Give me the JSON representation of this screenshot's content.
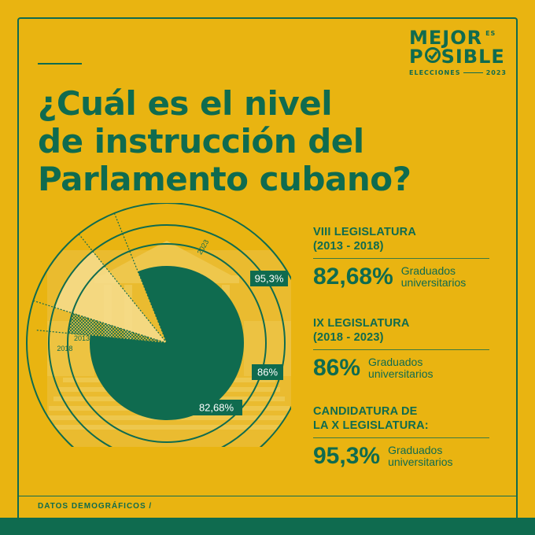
{
  "logo": {
    "line1": "MEJOR",
    "superscript": "ES",
    "line2_start": "P",
    "line2_end": "SIBLE",
    "line3_left": "ELECCIONES",
    "line3_right": "2023",
    "check_icon": "checkmark-icon"
  },
  "title": {
    "line1": "¿Cuál es el nivel",
    "line2": "de instrucción del",
    "line3": "Parlamento cubano?"
  },
  "blocks": [
    {
      "heading1": "VIII LEGISLATURA",
      "heading2": "(2013 - 2018)",
      "percent": "82,68%",
      "label1": "Graduados",
      "label2": "universitarios"
    },
    {
      "heading1": "IX LEGISLATURA",
      "heading2": "(2018 - 2023)",
      "percent": "86%",
      "label1": "Graduados",
      "label2": "universitarios"
    },
    {
      "heading1": "CANDIDATURA DE",
      "heading2": "LA X LEGISLATURA:",
      "percent": "95,3%",
      "label1": "Graduados",
      "label2": "universitarios"
    }
  ],
  "chart_data": {
    "type": "pie",
    "series": [
      {
        "year": "2013",
        "value_label": "82,68%",
        "value": 82.68
      },
      {
        "year": "2018",
        "value_label": "86%",
        "value": 86
      },
      {
        "year": "2023",
        "value_label": "95,3%",
        "value": 95.3
      }
    ]
  },
  "footer": {
    "text": "DATOS DEMOGRÁFICOS /"
  },
  "colors": {
    "background": "#e9b411",
    "green": "#0f6b4f",
    "pale": "#f6dd8e"
  }
}
